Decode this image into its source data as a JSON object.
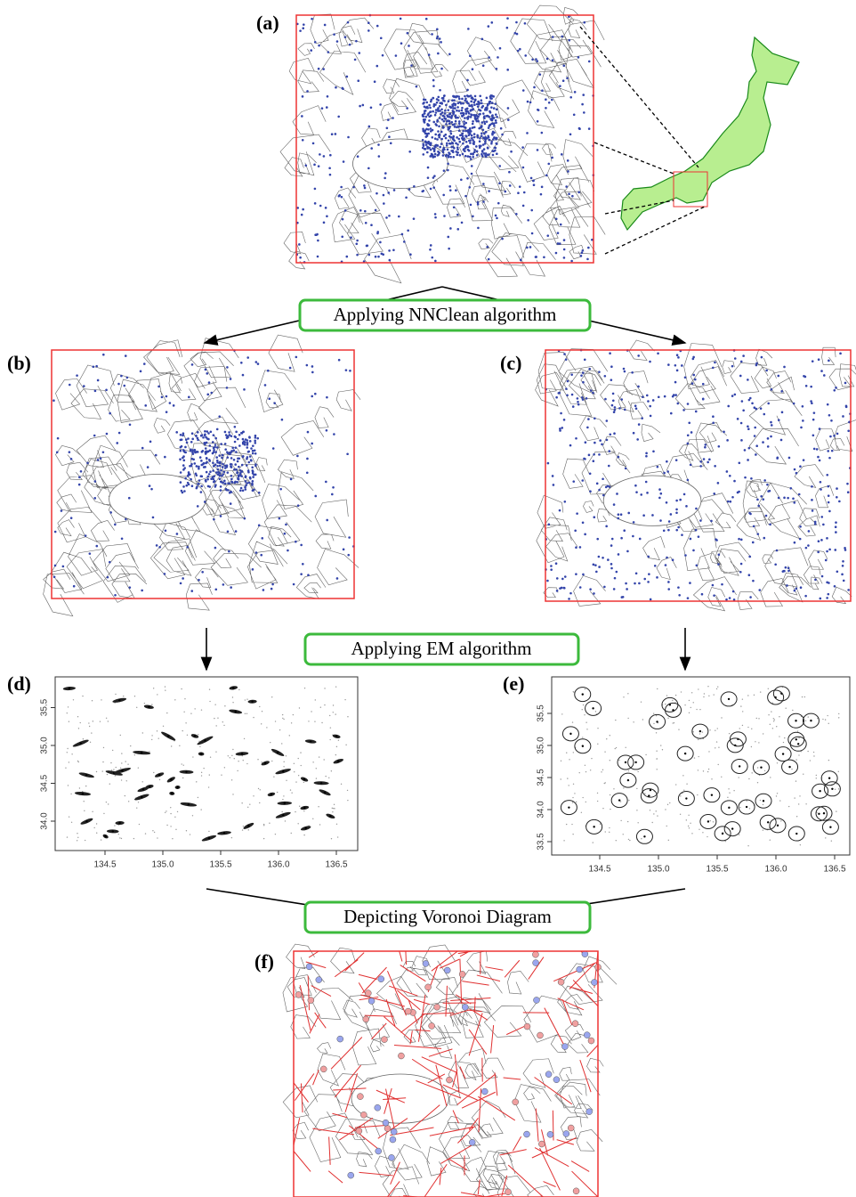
{
  "panels": {
    "a": "(a)",
    "b": "(b)",
    "c": "(c)",
    "d": "(d)",
    "e": "(e)",
    "f": "(f)"
  },
  "steps": [
    "Applying NNClean algorithm",
    "Applying EM algorithm",
    "Depicting Voronoi Diagram"
  ],
  "plots": [
    {
      "xticks": [
        "134.5",
        "135.0",
        "135.5",
        "136.0",
        "136.5"
      ],
      "yticks": [
        "34.0",
        "34.5",
        "35.0",
        "35.5"
      ]
    },
    {
      "xticks": [
        "134.5",
        "135.0",
        "135.5",
        "136.0",
        "136.5"
      ],
      "yticks": [
        "33.5",
        "34.0",
        "34.5",
        "35.0",
        "35.5"
      ]
    }
  ]
}
